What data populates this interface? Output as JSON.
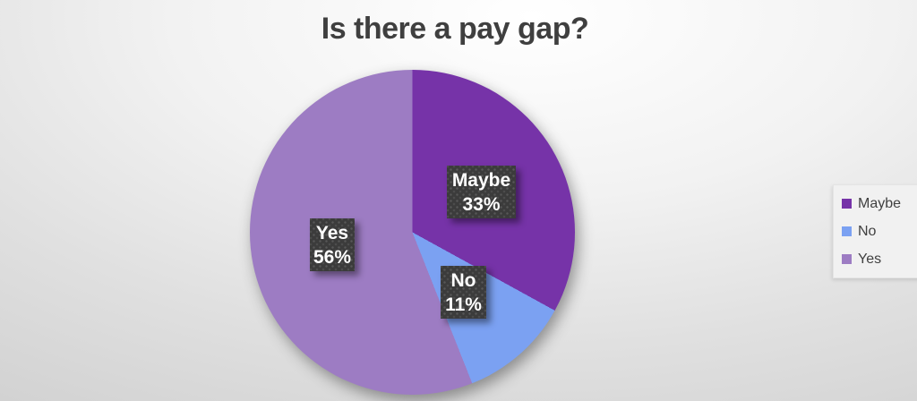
{
  "chart_data": {
    "type": "pie",
    "title": "Is there a pay gap?",
    "categories": [
      "Maybe",
      "No",
      "Yes"
    ],
    "values": [
      33,
      11,
      56
    ],
    "unit": "%",
    "slice_colors": [
      "#7633A8",
      "#7BA1F2",
      "#9D7CC3"
    ],
    "start_angle_deg": 0,
    "direction": "clockwise",
    "legend_position": "right",
    "data_labels": [
      {
        "category": "Maybe",
        "text": "33%"
      },
      {
        "category": "No",
        "text": "11%"
      },
      {
        "category": "Yes",
        "text": "56%"
      }
    ],
    "title_color": "#3F3F3F",
    "label_box_color": "#3B3B3B",
    "label_text_color": "#FFFFFF"
  },
  "legend": {
    "items": [
      {
        "label": "Maybe",
        "color": "#7633A8"
      },
      {
        "label": "No",
        "color": "#7BA1F2"
      },
      {
        "label": "Yes",
        "color": "#9D7CC3"
      }
    ]
  }
}
